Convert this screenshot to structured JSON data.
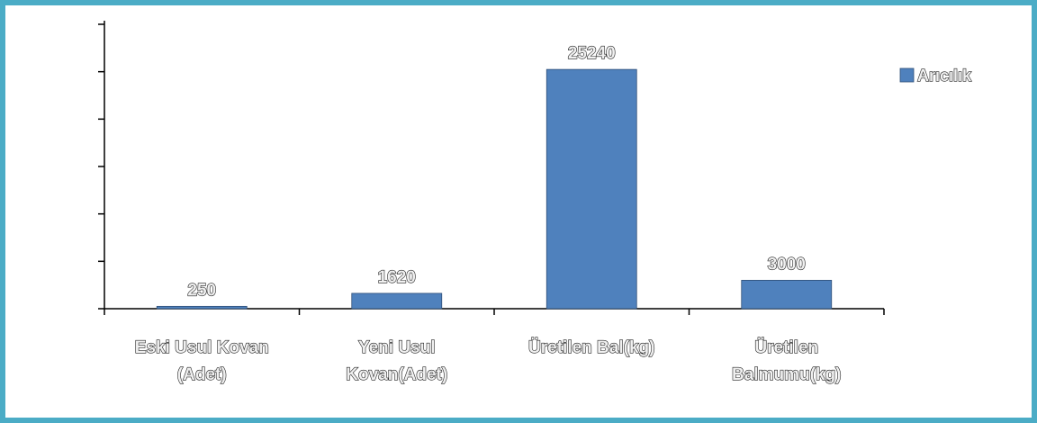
{
  "chart_data": {
    "type": "bar",
    "categories": [
      [
        "Eski Usul Kovan",
        "(Adet)"
      ],
      [
        "Yeni Usul",
        "Kovan(Adet)"
      ],
      [
        "Üretilen Bal(kg)"
      ],
      [
        "Üretilen",
        "Balmumu(kg)"
      ]
    ],
    "series": [
      {
        "name": "Arıcılık",
        "values": [
          250,
          1620,
          25240,
          3000
        ],
        "color": "#4f81bd"
      }
    ],
    "data_labels": [
      "250",
      "1620",
      "25240",
      "3000"
    ],
    "ylim": [
      0,
      30000
    ],
    "y_tick_step": 5000,
    "y_tick_labels_visible": false,
    "grid": false,
    "legend_position": "right",
    "colors": {
      "border": "#4bacc6",
      "bar": "#4f81bd",
      "axis": "#000000"
    }
  }
}
